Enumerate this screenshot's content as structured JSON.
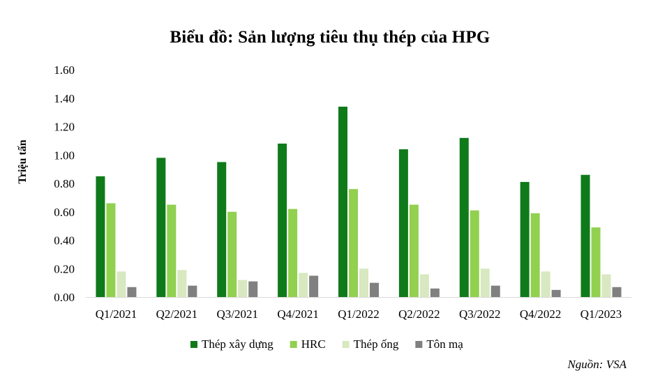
{
  "chart_data": {
    "type": "bar",
    "title": "Biểu đồ: Sản lượng tiêu thụ thép của HPG",
    "xlabel": "",
    "ylabel": "Triệu tấn",
    "ylim": [
      0,
      1.6
    ],
    "yticks": [
      "0.00",
      "0.20",
      "0.40",
      "0.60",
      "0.80",
      "1.00",
      "1.20",
      "1.40",
      "1.60"
    ],
    "grid": false,
    "legend_position": "bottom",
    "categories": [
      "Q1/2021",
      "Q2/2021",
      "Q3/2021",
      "Q4/2021",
      "Q1/2022",
      "Q2/2022",
      "Q3/2022",
      "Q4/2022",
      "Q1/2023"
    ],
    "series": [
      {
        "name": "Thép xây dựng",
        "color": "#0f7a1a",
        "values": [
          0.85,
          0.98,
          0.95,
          1.08,
          1.34,
          1.04,
          1.12,
          0.81,
          0.86
        ]
      },
      {
        "name": "HRC",
        "color": "#92d050",
        "values": [
          0.66,
          0.65,
          0.6,
          0.62,
          0.76,
          0.65,
          0.61,
          0.59,
          0.49
        ]
      },
      {
        "name": "Thép ống",
        "color": "#d8e8c0",
        "values": [
          0.18,
          0.19,
          0.12,
          0.17,
          0.2,
          0.16,
          0.2,
          0.18,
          0.16
        ]
      },
      {
        "name": "Tôn mạ",
        "color": "#808080",
        "values": [
          0.07,
          0.08,
          0.11,
          0.15,
          0.1,
          0.06,
          0.08,
          0.05,
          0.07
        ]
      }
    ],
    "source": "Nguồn: VSA"
  }
}
